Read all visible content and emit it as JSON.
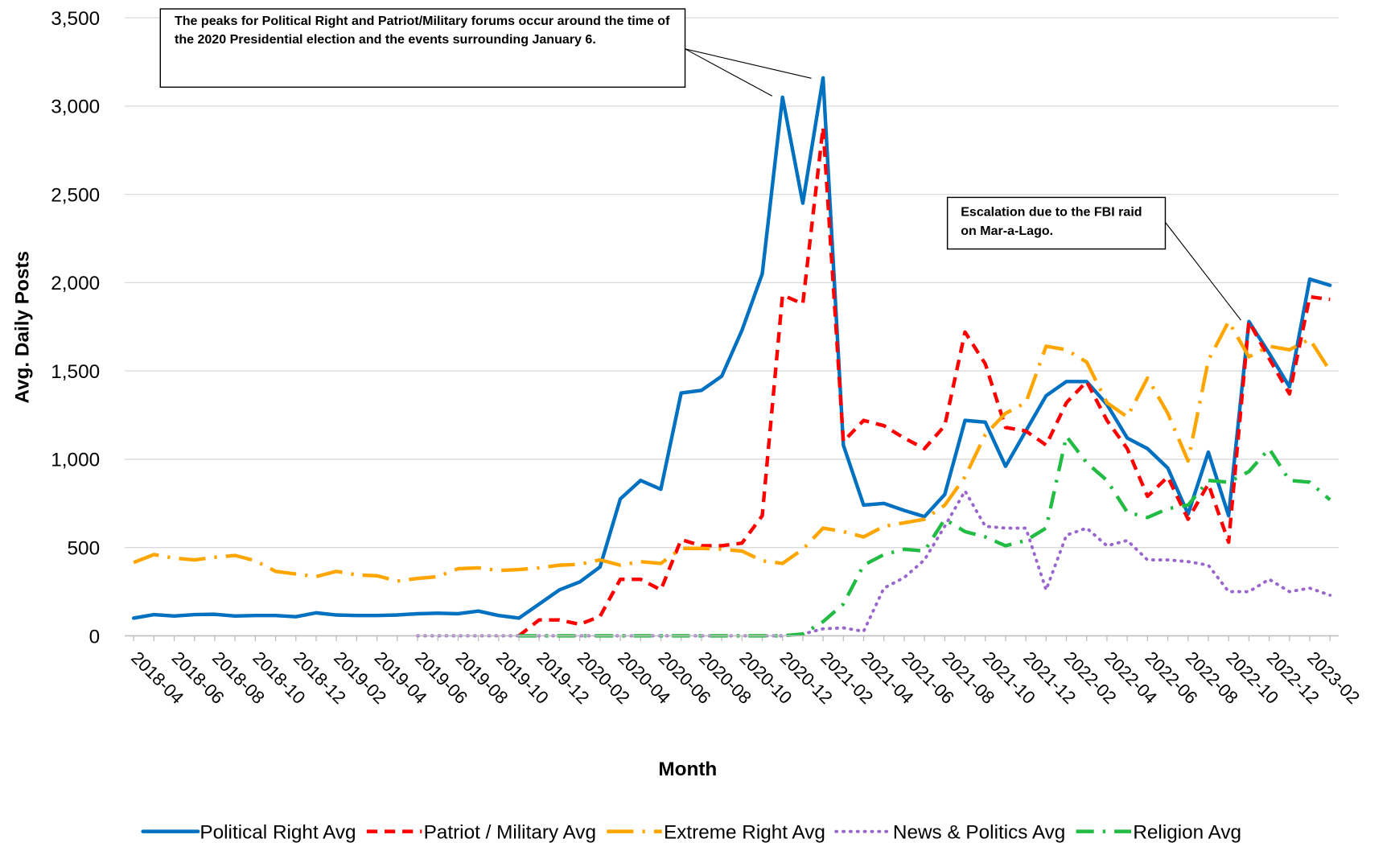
{
  "chart_data": {
    "type": "line",
    "y_axis_label": "Avg. Daily Posts",
    "x_axis_label": "Month",
    "categories": [
      "2018-04",
      null,
      "2018-06",
      null,
      "2018-08",
      null,
      "2018-10",
      null,
      "2018-12",
      null,
      "2019-02",
      null,
      "2019-04",
      null,
      "2019-06",
      null,
      "2019-08",
      null,
      "2019-10",
      null,
      "2019-12",
      null,
      "2020-02",
      null,
      "2020-04",
      null,
      "2020-06",
      null,
      "2020-08",
      null,
      "2020-10",
      null,
      "2020-12",
      null,
      "2021-02",
      null,
      "2021-04",
      null,
      "2021-06",
      null,
      "2021-08",
      null,
      "2021-10",
      null,
      "2021-12",
      null,
      "2022-02",
      null,
      "2022-04",
      null,
      "2022-06",
      null,
      "2022-08",
      null,
      "2022-10",
      null,
      "2022-12",
      null,
      "2023-02",
      null
    ],
    "ylim": [
      0,
      3500
    ],
    "yticks": [
      0,
      500,
      {
        "value": 1000,
        "label": "1,000"
      },
      {
        "value": 1500,
        "label": "1,500"
      },
      {
        "value": 2000,
        "label": "2,000"
      },
      {
        "value": 2500,
        "label": "2,500"
      },
      {
        "value": 3000,
        "label": "3,000"
      },
      {
        "value": 3500,
        "label": "3,500"
      }
    ],
    "grid": true,
    "legend": "bottom",
    "series": [
      {
        "name": "Political Right Avg",
        "color": "#0070C0",
        "style": "solid",
        "values": [
          100,
          120,
          112,
          120,
          122,
          112,
          115,
          115,
          108,
          130,
          118,
          115,
          115,
          118,
          125,
          128,
          125,
          140,
          115,
          100,
          180,
          260,
          305,
          390,
          775,
          880,
          830,
          1375,
          1390,
          1470,
          1730,
          2050,
          3050,
          2450,
          3160,
          1080,
          740,
          750,
          710,
          675,
          800,
          1220,
          1210,
          960,
          1160,
          1360,
          1440,
          1440,
          1310,
          1120,
          1060,
          950,
          690,
          1040,
          680,
          1780,
          1600,
          1410,
          2020,
          1985
        ]
      },
      {
        "name": "Patriot / Military Avg",
        "color": "#FF0000",
        "style": "dashed",
        "values": [
          null,
          null,
          null,
          null,
          null,
          null,
          null,
          null,
          null,
          null,
          null,
          null,
          null,
          null,
          null,
          null,
          null,
          null,
          null,
          0,
          90,
          90,
          65,
          110,
          320,
          320,
          260,
          545,
          510,
          510,
          525,
          680,
          1930,
          1880,
          2880,
          1100,
          1220,
          1190,
          1120,
          1060,
          1190,
          1720,
          1540,
          1180,
          1160,
          1080,
          1320,
          1440,
          1220,
          1060,
          790,
          900,
          660,
          860,
          530,
          1780,
          1570,
          1370,
          1920,
          1905
        ]
      },
      {
        "name": "Extreme Right Avg",
        "color": "#FFA500",
        "style": "long-dash-dot",
        "values": [
          415,
          460,
          440,
          430,
          445,
          455,
          425,
          365,
          350,
          335,
          365,
          345,
          340,
          310,
          325,
          335,
          380,
          385,
          370,
          375,
          385,
          400,
          405,
          430,
          400,
          420,
          410,
          495,
          495,
          490,
          480,
          425,
          410,
          490,
          610,
          590,
          560,
          620,
          640,
          660,
          740,
          900,
          1140,
          1260,
          1320,
          1640,
          1620,
          1550,
          1320,
          1240,
          1460,
          1260,
          990,
          1560,
          1780,
          1580,
          1640,
          1620,
          1680,
          1500
        ]
      },
      {
        "name": "News & Politics Avg",
        "color": "#9966CC",
        "style": "dotted",
        "values": [
          null,
          null,
          null,
          null,
          null,
          null,
          null,
          null,
          null,
          null,
          null,
          null,
          null,
          null,
          0,
          0,
          0,
          0,
          0,
          0,
          0,
          0,
          0,
          0,
          0,
          0,
          0,
          0,
          0,
          0,
          0,
          0,
          0,
          10,
          40,
          45,
          25,
          270,
          330,
          430,
          620,
          820,
          620,
          610,
          610,
          260,
          570,
          610,
          510,
          540,
          430,
          430,
          420,
          400,
          250,
          250,
          320,
          250,
          270,
          230
        ]
      },
      {
        "name": "Religion Avg",
        "color": "#22BB44",
        "style": "dash-dot",
        "values": [
          null,
          null,
          null,
          null,
          null,
          null,
          null,
          null,
          null,
          null,
          null,
          null,
          null,
          null,
          null,
          null,
          null,
          null,
          null,
          0,
          0,
          0,
          0,
          0,
          0,
          0,
          0,
          0,
          0,
          0,
          0,
          0,
          0,
          10,
          80,
          180,
          400,
          460,
          490,
          480,
          660,
          590,
          560,
          510,
          540,
          610,
          1130,
          980,
          880,
          700,
          670,
          720,
          740,
          880,
          870,
          930,
          1060,
          880,
          870,
          770
        ]
      }
    ],
    "annotations": [
      "The peaks for Political Right and Patriot/Military forums occur around the time of the 2020 Presidential election and the events surrounding January 6.",
      "Escalation due to the FBI raid on Mar-a-Lago."
    ]
  }
}
